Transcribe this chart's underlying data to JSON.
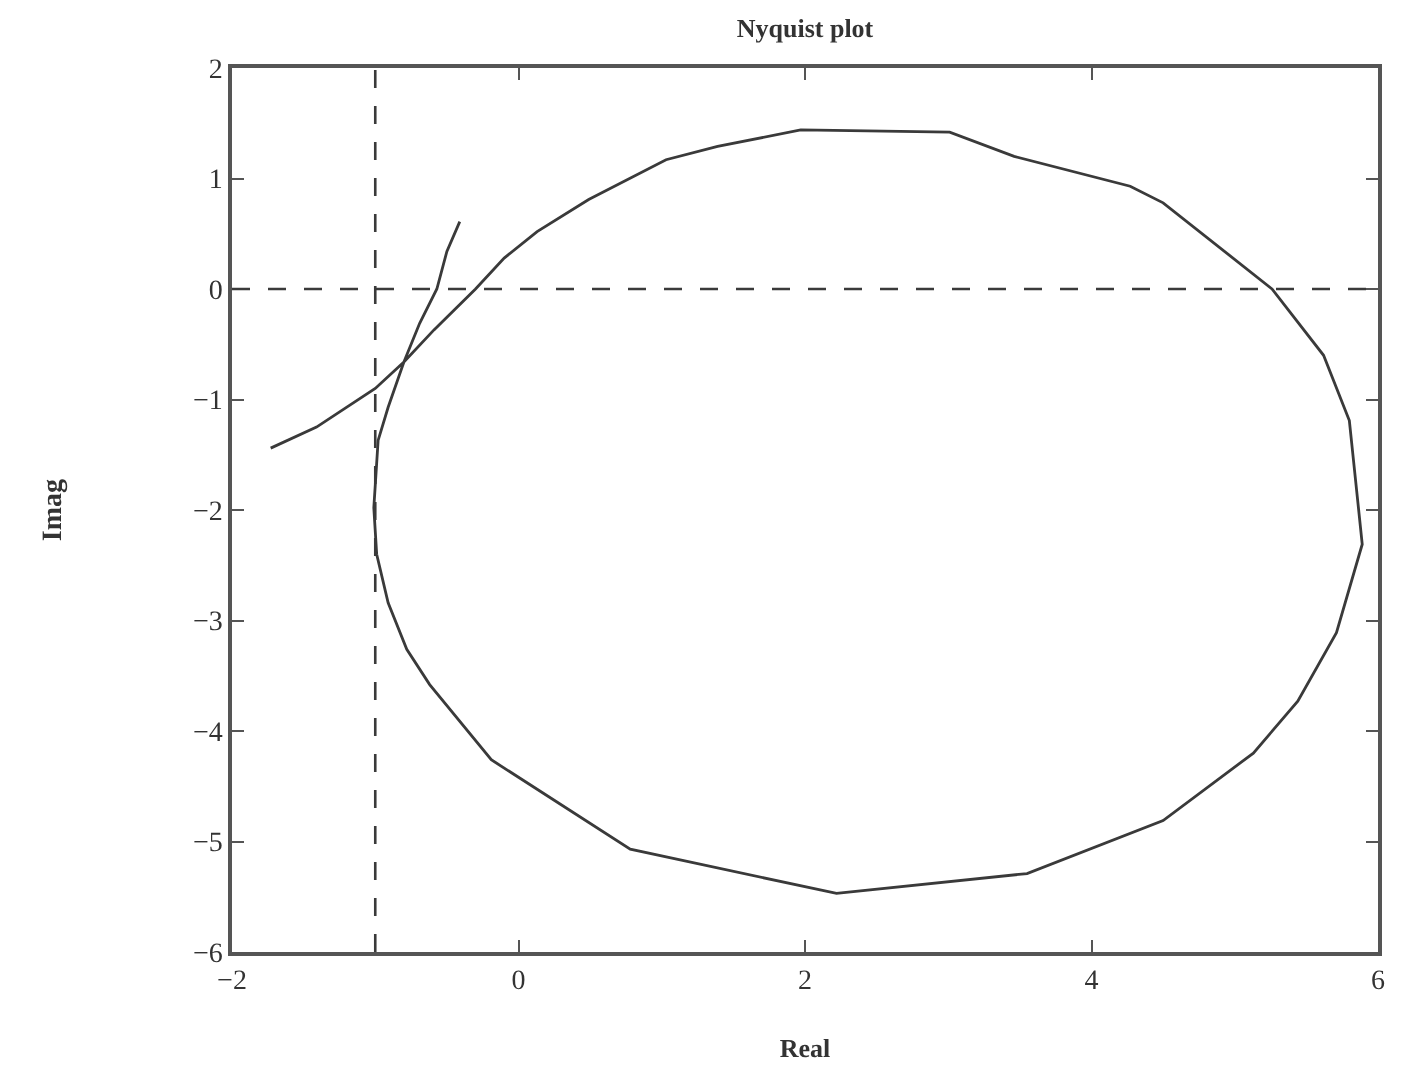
{
  "chart_data": {
    "type": "line",
    "title": "Nyquist plot",
    "xlabel": "Real",
    "ylabel": "Imag",
    "xlim": [
      -2,
      6
    ],
    "ylim": [
      -6,
      2
    ],
    "xticks": [
      -2,
      0,
      2,
      4,
      6
    ],
    "yticks": [
      -6,
      -5,
      -4,
      -3,
      -2,
      -1,
      0,
      1,
      2
    ],
    "series": [
      {
        "color": "#3a3a3a",
        "x": [
          -1.73,
          -1.41,
          -1.0,
          -0.8,
          -0.59,
          -0.3,
          -0.1,
          0.13,
          0.49,
          1.03,
          1.39,
          1.97,
          3.01,
          3.46,
          4.27,
          4.5,
          5.26,
          5.62,
          5.8,
          5.89,
          5.71,
          5.44,
          5.13,
          4.5,
          3.55,
          2.22,
          0.78,
          -0.19,
          -0.62,
          -0.78,
          -0.91,
          -0.99,
          -1.01,
          -0.98,
          -0.91,
          -0.8,
          -0.69,
          -0.57,
          -0.5,
          -0.41
        ],
        "values": [
          -1.44,
          -1.25,
          -0.9,
          -0.66,
          -0.37,
          0,
          0.28,
          0.52,
          0.81,
          1.17,
          1.29,
          1.44,
          1.42,
          1.2,
          0.93,
          0.78,
          0,
          -0.6,
          -1.19,
          -2.31,
          -3.11,
          -3.73,
          -4.2,
          -4.81,
          -5.29,
          -5.47,
          -5.07,
          -4.26,
          -3.58,
          -3.26,
          -2.84,
          -2.4,
          -1.98,
          -1.37,
          -1.07,
          -0.66,
          -0.31,
          0,
          0.34,
          0.61
        ]
      }
    ],
    "ref_lines": [
      {
        "axis": "x",
        "value": -1,
        "line_style": "dashed",
        "color": "#3a3a3a"
      },
      {
        "axis": "y",
        "value": 0,
        "line_style": "dashed",
        "color": "#3a3a3a"
      }
    ]
  }
}
